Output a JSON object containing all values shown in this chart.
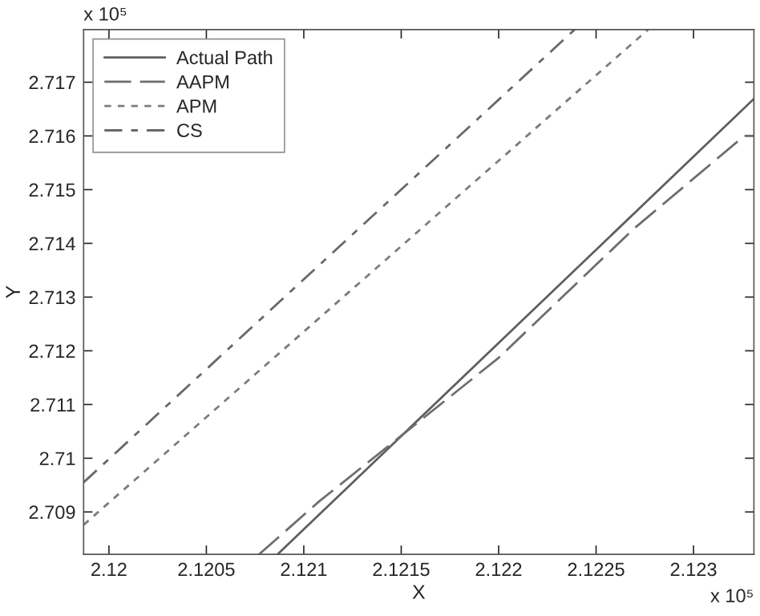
{
  "chart_data": {
    "type": "line",
    "xlabel": "X",
    "ylabel": "Y",
    "series": [
      {
        "name": "Actual Path",
        "color": "#5e5e5e",
        "line_style": "solid",
        "x": [
          2.120865,
          2.12331
        ],
        "values": [
          2.70821,
          2.71669
        ]
      },
      {
        "name": "AAPM",
        "color": "#6e6e6e",
        "line_style": "dashed",
        "x": [
          2.12077,
          2.12108,
          2.122,
          2.12269,
          2.12326,
          2.12331
        ],
        "values": [
          2.70821,
          2.7092,
          2.71187,
          2.71426,
          2.716,
          2.716
        ]
      },
      {
        "name": "APM",
        "color": "#7c7c7c",
        "line_style": "dotted",
        "x": [
          2.11987,
          2.122767
        ],
        "values": [
          2.70876,
          2.71798
        ]
      },
      {
        "name": "CS",
        "color": "#686868",
        "line_style": "dashdot",
        "x": [
          2.11987,
          2.12239
        ],
        "values": [
          2.70955,
          2.71798
        ]
      }
    ],
    "xlim": [
      2.11987,
      2.12331
    ],
    "ylim": [
      2.70821,
      2.71798
    ],
    "xticks": [
      2.12,
      2.1205,
      2.121,
      2.1215,
      2.122,
      2.1225,
      2.123
    ],
    "yticks": [
      2.709,
      2.71,
      2.711,
      2.712,
      2.713,
      2.714,
      2.715,
      2.716,
      2.717
    ],
    "annotations": [
      "x 10⁵",
      "x 10⁵"
    ],
    "legend": "top left",
    "grid": false
  }
}
